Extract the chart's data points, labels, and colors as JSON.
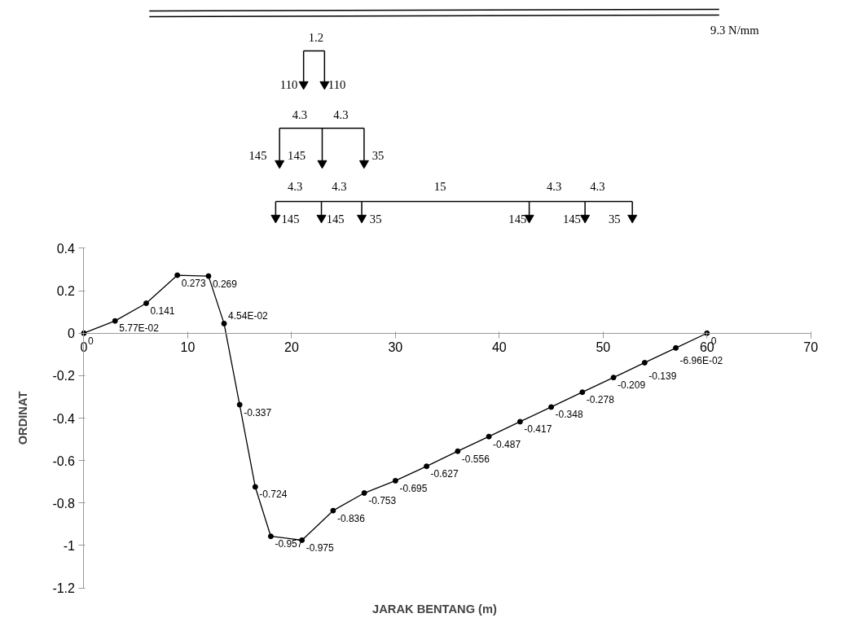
{
  "chart_data": {
    "type": "line",
    "xlabel": "JARAK BENTANG (m)",
    "ylabel": "ORDINAT",
    "annotations": [
      "9.3 N/mm",
      "1.2",
      "110",
      "110",
      "4.3",
      "4.3",
      "145",
      "145",
      "35",
      "4.3",
      "4.3",
      "15",
      "4.3",
      "4.3",
      "145",
      "145",
      "35",
      "145",
      "145",
      "35"
    ],
    "x": [
      0,
      3,
      6,
      9,
      12,
      13.5,
      15,
      16.5,
      18,
      21,
      24,
      27,
      30,
      33,
      36,
      39,
      42,
      45,
      48,
      51,
      54,
      57,
      60
    ],
    "series": [
      {
        "color": "#000000",
        "values": [
          0,
          0.0577,
          0.141,
          0.273,
          0.269,
          0.0454,
          -0.337,
          -0.724,
          -0.957,
          -0.975,
          -0.836,
          -0.753,
          -0.695,
          -0.627,
          -0.556,
          -0.487,
          -0.417,
          -0.348,
          -0.278,
          -0.209,
          -0.139,
          -0.0696,
          0
        ],
        "value_labels": [
          "0",
          "5.77E-02",
          "0.141",
          "0.273",
          "0.269",
          "4.54E-02",
          "-0.337",
          "-0.724",
          "-0.957",
          "-0.975",
          "-0.836",
          "-0.753",
          "-0.695",
          "-0.627",
          "-0.556",
          "-0.487",
          "-0.417",
          "-0.348",
          "-0.278",
          "-0.209",
          "-0.139",
          "-6.96E-02",
          "0"
        ]
      }
    ],
    "xlim": [
      0,
      70
    ],
    "xticks": [
      0,
      10,
      20,
      30,
      40,
      50,
      60,
      70
    ],
    "ylim": [
      -1.2,
      0.4
    ],
    "yticks": [
      -1.2,
      -1,
      -0.8,
      -0.6,
      -0.4,
      -0.2,
      0,
      0.2,
      0.4
    ],
    "marker": "circle",
    "line_style": "solid"
  }
}
